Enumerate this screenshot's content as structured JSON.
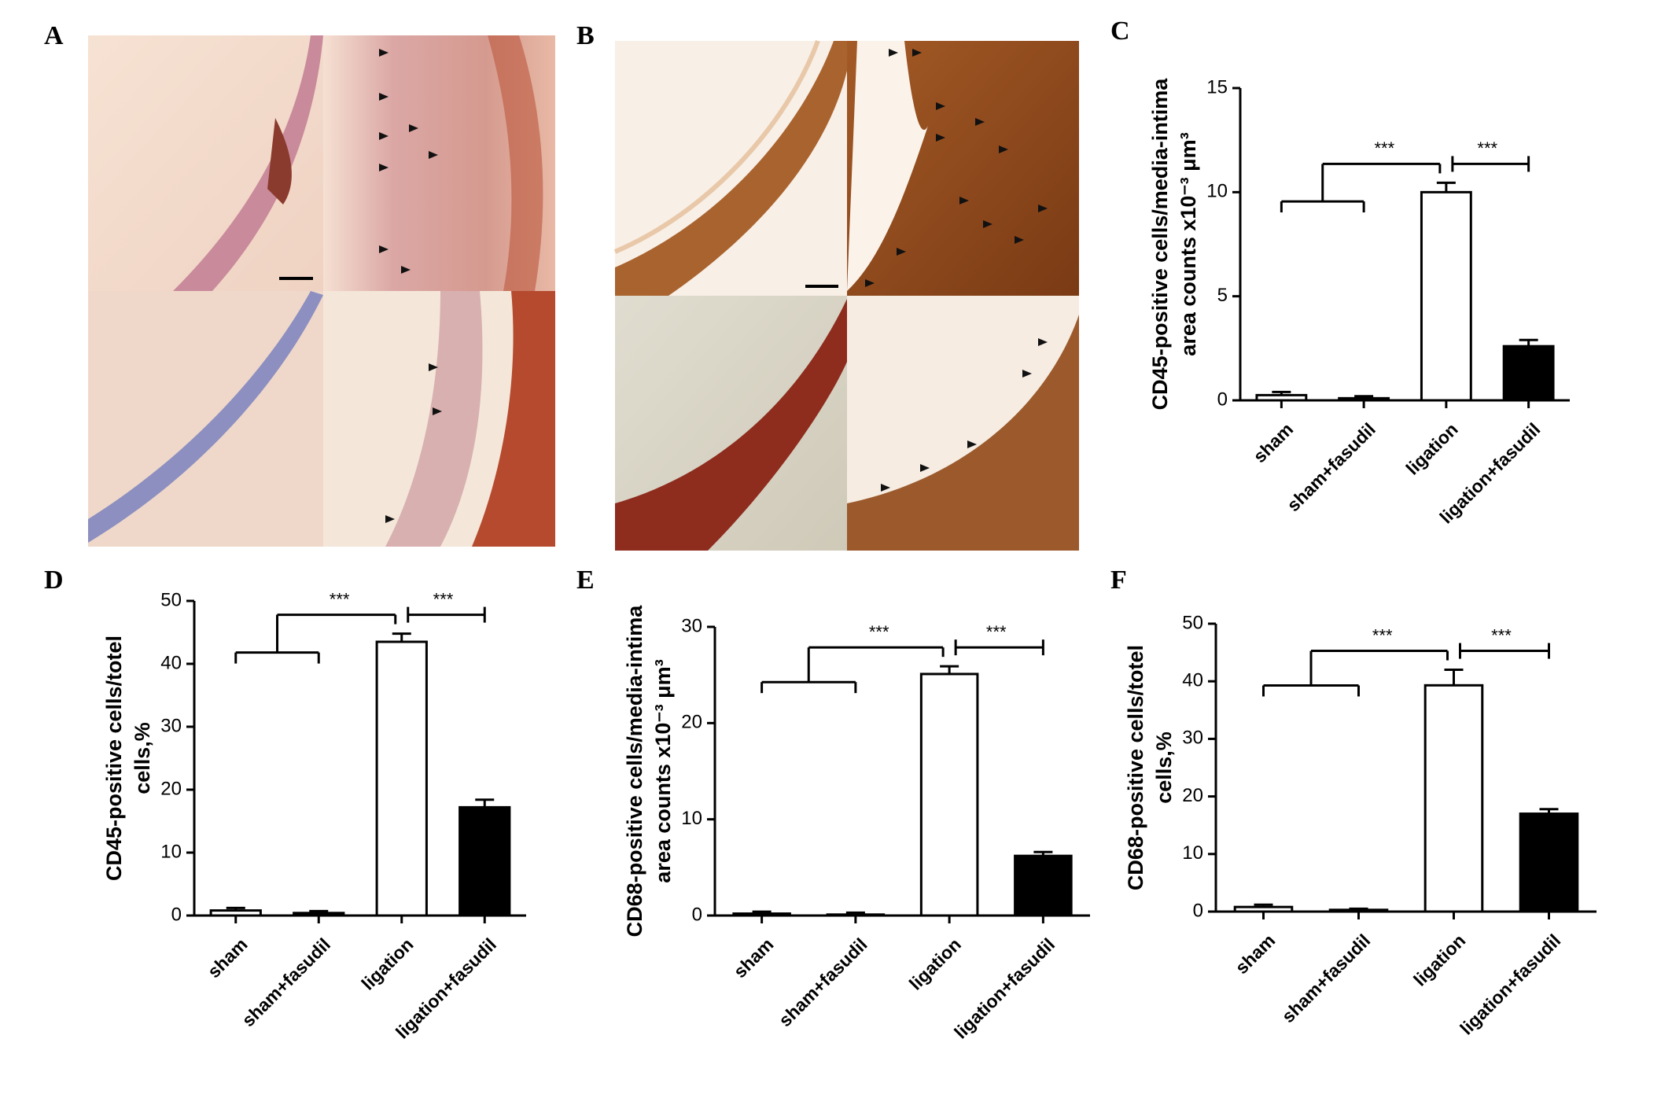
{
  "images": [
    {
      "label": "A"
    },
    {
      "label": "B"
    }
  ],
  "chart_data": [
    {
      "type": "bar",
      "label": "C",
      "y_label": [
        "CD45-positive cells/media-intima",
        "area counts x10⁻³ μm³"
      ],
      "categories": [
        "sham",
        "sham+fasudil",
        "ligation",
        "ligation+fasudil"
      ],
      "values": [
        0.25,
        0.1,
        10.0,
        2.6
      ],
      "errors": [
        0.15,
        0.1,
        0.45,
        0.3
      ],
      "colors": [
        "#ffffff",
        "#000000",
        "#ffffff",
        "#000000"
      ],
      "ylim": [
        0,
        15
      ],
      "yticks": [
        0,
        5,
        10,
        15
      ],
      "annotations": [
        "***",
        "***"
      ]
    },
    {
      "type": "bar",
      "label": "D",
      "y_label": [
        "CD45-positive cells/totel",
        "cells,%"
      ],
      "categories": [
        "sham",
        "sham+fasudil",
        "ligation",
        "ligation+fasudil"
      ],
      "values": [
        0.8,
        0.4,
        43.5,
        17.2
      ],
      "errors": [
        0.4,
        0.3,
        1.3,
        1.2
      ],
      "colors": [
        "#ffffff",
        "#000000",
        "#ffffff",
        "#000000"
      ],
      "ylim": [
        0,
        50
      ],
      "yticks": [
        0,
        10,
        20,
        30,
        40,
        50
      ],
      "annotations": [
        "***",
        "***"
      ]
    },
    {
      "type": "bar",
      "label": "E",
      "y_label": [
        "CD68-positive cells/media-intima",
        "area counts x10⁻³ μm³"
      ],
      "categories": [
        "sham",
        "sham+fasudil",
        "ligation",
        "ligation+fasudil"
      ],
      "values": [
        0.2,
        0.1,
        25.1,
        6.2
      ],
      "errors": [
        0.2,
        0.2,
        0.8,
        0.4
      ],
      "colors": [
        "#ffffff",
        "#000000",
        "#ffffff",
        "#000000"
      ],
      "ylim": [
        0,
        30
      ],
      "yticks": [
        0,
        10,
        20,
        30
      ],
      "annotations": [
        "***",
        "***"
      ]
    },
    {
      "type": "bar",
      "label": "F",
      "y_label": [
        "CD68-positive cells/totel",
        "cells,%"
      ],
      "categories": [
        "sham",
        "sham+fasudil",
        "ligation",
        "ligation+fasudil"
      ],
      "values": [
        0.8,
        0.3,
        39.3,
        17.0
      ],
      "errors": [
        0.4,
        0.2,
        2.7,
        0.8
      ],
      "colors": [
        "#ffffff",
        "#000000",
        "#ffffff",
        "#000000"
      ],
      "ylim": [
        0,
        50
      ],
      "yticks": [
        0,
        10,
        20,
        30,
        40,
        50
      ],
      "annotations": [
        "***",
        "***"
      ]
    }
  ]
}
